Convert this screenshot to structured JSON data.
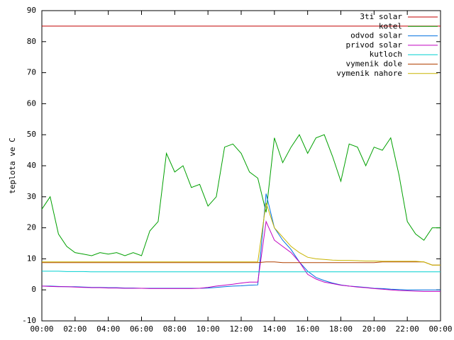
{
  "chart_data": {
    "type": "line",
    "ylabel": "teplota ve C",
    "x": [
      0,
      0.5,
      1,
      1.5,
      2,
      2.5,
      3,
      3.5,
      4,
      4.5,
      5,
      5.5,
      6,
      6.5,
      7,
      7.5,
      8,
      8.5,
      9,
      9.5,
      10,
      10.5,
      11,
      11.5,
      12,
      12.5,
      13,
      13.5,
      14,
      14.5,
      15,
      15.5,
      16,
      16.5,
      17,
      17.5,
      18,
      18.5,
      19,
      19.5,
      20,
      20.5,
      21,
      21.5,
      22,
      22.5,
      23,
      23.5,
      24
    ],
    "xlim": [
      0,
      24
    ],
    "xticks": [
      {
        "value": 0,
        "label": "00:00"
      },
      {
        "value": 2,
        "label": "02:00"
      },
      {
        "value": 4,
        "label": "04:00"
      },
      {
        "value": 6,
        "label": "06:00"
      },
      {
        "value": 8,
        "label": "08:00"
      },
      {
        "value": 10,
        "label": "10:00"
      },
      {
        "value": 12,
        "label": "12:00"
      },
      {
        "value": 14,
        "label": "14:00"
      },
      {
        "value": 16,
        "label": "16:00"
      },
      {
        "value": 18,
        "label": "18:00"
      },
      {
        "value": 20,
        "label": "20:00"
      },
      {
        "value": 22,
        "label": "22:00"
      },
      {
        "value": 24,
        "label": "00:00"
      }
    ],
    "ylim": [
      -10,
      90
    ],
    "yticks": [
      -10,
      0,
      10,
      20,
      30,
      40,
      50,
      60,
      70,
      80,
      90
    ],
    "grid": false,
    "legend": "top-right",
    "series": [
      {
        "name": "3ti solar",
        "color": "#c00000",
        "values": [
          85,
          85,
          85,
          85,
          85,
          85,
          85,
          85,
          85,
          85,
          85,
          85,
          85,
          85,
          85,
          85,
          85,
          85,
          85,
          85,
          85,
          85,
          85,
          85,
          85,
          85,
          85,
          85,
          85,
          85,
          85,
          85,
          85,
          85,
          85,
          85,
          85,
          85,
          85,
          85,
          85,
          85,
          85,
          85,
          85,
          85,
          85,
          85,
          85
        ]
      },
      {
        "name": "kotel",
        "color": "#00a000",
        "values": [
          26,
          30,
          18,
          14,
          12,
          11.5,
          11,
          12,
          11.5,
          12,
          11,
          12,
          11,
          19,
          22,
          44,
          38,
          40,
          33,
          34,
          27,
          30,
          46,
          47,
          44,
          38,
          36,
          25,
          49,
          41,
          46,
          50,
          44,
          49,
          50,
          43,
          35,
          47,
          46,
          40,
          46,
          45,
          49,
          37,
          22,
          18,
          16,
          20,
          20
        ]
      },
      {
        "name": "odvod solar",
        "color": "#0070e0",
        "values": [
          1.2,
          1.2,
          1.1,
          1,
          1,
          0.9,
          0.8,
          0.8,
          0.7,
          0.7,
          0.6,
          0.6,
          0.5,
          0.5,
          0.5,
          0.5,
          0.5,
          0.5,
          0.5,
          0.5,
          0.6,
          0.8,
          1,
          1.2,
          1.3,
          1.5,
          1.6,
          31,
          20,
          16,
          13,
          9,
          6,
          4,
          3,
          2.2,
          1.6,
          1.2,
          1,
          0.8,
          0.5,
          0.4,
          0.2,
          0.1,
          0,
          0,
          0,
          0,
          0
        ]
      },
      {
        "name": "privod solar",
        "color": "#c000c0",
        "values": [
          1.2,
          1.1,
          1,
          1,
          0.9,
          0.8,
          0.7,
          0.7,
          0.6,
          0.6,
          0.5,
          0.5,
          0.5,
          0.4,
          0.4,
          0.4,
          0.4,
          0.4,
          0.4,
          0.5,
          0.8,
          1.2,
          1.5,
          1.8,
          2.2,
          2.5,
          2.5,
          22,
          16,
          14,
          12,
          9,
          5,
          3.5,
          2.5,
          2,
          1.5,
          1.2,
          0.9,
          0.7,
          0.4,
          0.2,
          0,
          -0.2,
          -0.3,
          -0.4,
          -0.5,
          -0.5,
          -0.5
        ]
      },
      {
        "name": "kutloch",
        "color": "#00d0d0",
        "values": [
          6,
          6,
          6,
          5.9,
          5.9,
          5.9,
          5.8,
          5.8,
          5.8,
          5.8,
          5.8,
          5.8,
          5.8,
          5.8,
          5.8,
          5.8,
          5.8,
          5.8,
          5.8,
          5.8,
          5.8,
          5.8,
          5.8,
          5.8,
          5.8,
          5.8,
          5.8,
          5.8,
          5.8,
          5.8,
          5.8,
          5.8,
          5.8,
          5.8,
          5.8,
          5.8,
          5.8,
          5.8,
          5.8,
          5.8,
          5.8,
          5.8,
          5.8,
          5.8,
          5.8,
          5.8,
          5.8,
          5.8,
          5.8
        ]
      },
      {
        "name": "vymenik dole",
        "color": "#b04000",
        "values": [
          8.8,
          8.8,
          8.8,
          8.8,
          8.8,
          8.8,
          8.8,
          8.8,
          8.8,
          8.8,
          8.8,
          8.8,
          8.8,
          8.8,
          8.8,
          8.8,
          8.8,
          8.8,
          8.8,
          8.8,
          8.8,
          8.8,
          8.8,
          8.8,
          8.8,
          8.8,
          8.8,
          9,
          9,
          8.8,
          8.8,
          8.8,
          8.8,
          8.8,
          8.8,
          8.8,
          8.8,
          8.8,
          8.8,
          8.8,
          8.8,
          9,
          9,
          9,
          9,
          9,
          9,
          8,
          8
        ]
      },
      {
        "name": "vymenik nahore",
        "color": "#c8b400",
        "values": [
          9,
          9,
          9,
          9,
          9,
          9,
          9,
          9,
          9,
          9,
          9,
          9,
          9,
          9,
          9,
          9,
          9,
          9,
          9,
          9,
          9,
          9,
          9,
          9,
          9,
          9,
          9,
          28,
          20,
          17,
          14,
          12,
          10.5,
          10,
          9.8,
          9.6,
          9.5,
          9.5,
          9.4,
          9.3,
          9.3,
          9.2,
          9.2,
          9.2,
          9.2,
          9.2,
          9,
          8,
          8
        ]
      }
    ]
  }
}
